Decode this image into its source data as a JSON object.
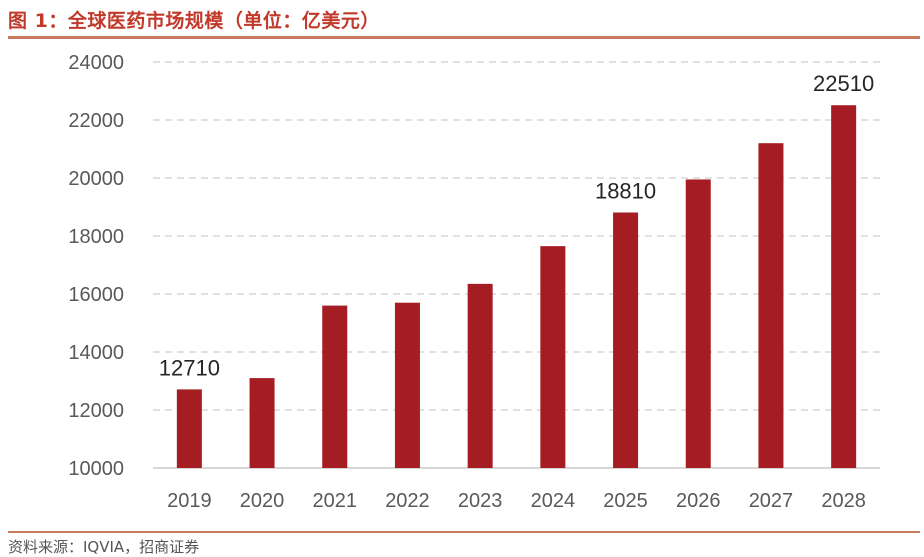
{
  "header": {
    "title": "图 1：全球医药市场规模（单位：亿美元）"
  },
  "footer": {
    "source": "资料来源：IQVIA，招商证券"
  },
  "chart_data": {
    "type": "bar",
    "title": "全球医药市场规模（单位：亿美元）",
    "categories": [
      "2019",
      "2020",
      "2021",
      "2022",
      "2023",
      "2024",
      "2025",
      "2026",
      "2027",
      "2028"
    ],
    "values": [
      12710,
      13100,
      15600,
      15700,
      16350,
      17650,
      18810,
      19950,
      21200,
      22510
    ],
    "data_labels": [
      {
        "index": 0,
        "text": "12710"
      },
      {
        "index": 6,
        "text": "18810"
      },
      {
        "index": 9,
        "text": "22510"
      }
    ],
    "ylim": [
      10000,
      24000
    ],
    "yticks": [
      10000,
      12000,
      14000,
      16000,
      18000,
      20000,
      22000,
      24000
    ],
    "grid": "dashed-horizontal",
    "bar_color": "#a51c23",
    "xlabel": "",
    "ylabel": ""
  }
}
